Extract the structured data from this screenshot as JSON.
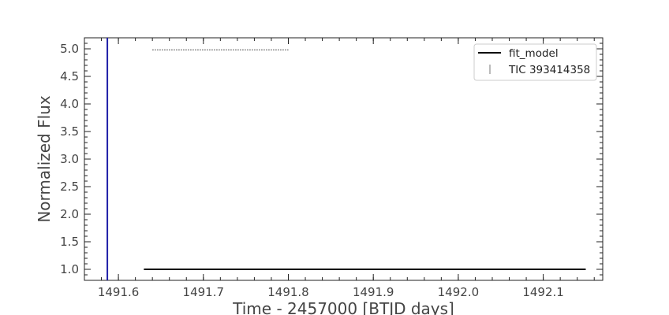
{
  "chart_data": {
    "type": "line",
    "title": "",
    "xlabel": "Time - 2457000 [BTJD days]",
    "ylabel": "Normalized Flux",
    "xlim": [
      1491.56,
      1492.17
    ],
    "ylim": [
      0.8,
      5.2
    ],
    "x_ticks": [
      {
        "value": 1491.6,
        "label": "1491.6"
      },
      {
        "value": 1491.7,
        "label": "1491.7"
      },
      {
        "value": 1491.8,
        "label": "1491.8"
      },
      {
        "value": 1491.9,
        "label": "1491.9"
      },
      {
        "value": 1492.0,
        "label": "1492.0"
      },
      {
        "value": 1492.1,
        "label": "1492.1"
      }
    ],
    "y_ticks": [
      {
        "value": 1.0,
        "label": "1.0"
      },
      {
        "value": 1.5,
        "label": "1.5"
      },
      {
        "value": 2.0,
        "label": "2.0"
      },
      {
        "value": 2.5,
        "label": "2.5"
      },
      {
        "value": 3.0,
        "label": "3.0"
      },
      {
        "value": 3.5,
        "label": "3.5"
      },
      {
        "value": 4.0,
        "label": "4.0"
      },
      {
        "value": 4.5,
        "label": "4.5"
      },
      {
        "value": 5.0,
        "label": "5.0"
      }
    ],
    "grid": false,
    "legend_position": "top-right",
    "series": [
      {
        "name": "fit_model",
        "style": "solid",
        "color": "#000000",
        "x": [
          1491.63,
          1492.15
        ],
        "y": [
          1.0,
          1.0
        ]
      },
      {
        "name": "TIC 393414358",
        "style": "errorbar-dotted",
        "color": "#555555",
        "x": [
          1491.64,
          1491.8
        ],
        "y": [
          4.98,
          4.98
        ]
      }
    ],
    "annotations": [
      {
        "type": "vertical-line",
        "x": 1491.587,
        "color": "#1f1fa8"
      }
    ]
  }
}
